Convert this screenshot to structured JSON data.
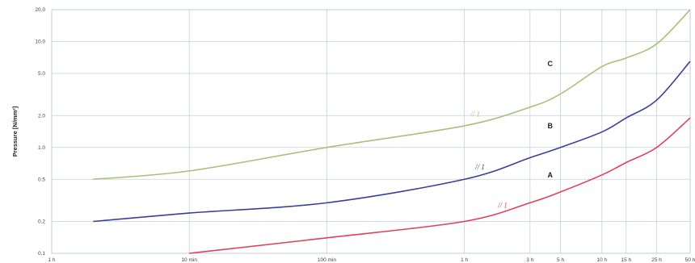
{
  "chart_data": {
    "type": "line",
    "title": "",
    "ylabel": "Pressure [N/mm²]",
    "xlabel": "",
    "y_scale": "log",
    "ylim": [
      0.1,
      20.0
    ],
    "y_ticks": [
      {
        "value": 0.1,
        "label": "0.1"
      },
      {
        "value": 0.2,
        "label": "0.2"
      },
      {
        "value": 0.5,
        "label": "0.5"
      },
      {
        "value": 1.0,
        "label": "1.0"
      },
      {
        "value": 2.0,
        "label": "2.0"
      },
      {
        "value": 5.0,
        "label": "5.0"
      },
      {
        "value": 10.0,
        "label": "10.0"
      },
      {
        "value": 20.0,
        "label": "20.0"
      }
    ],
    "x_scale": "log",
    "x_unit": "hours",
    "xlim": [
      1,
      43800
    ],
    "x_ticks": [
      {
        "value": 1,
        "label": "1 h"
      },
      {
        "value": 10,
        "label": "10 min"
      },
      {
        "value": 100,
        "label": "100 min"
      },
      {
        "value": 1000,
        "label": "1 h"
      },
      {
        "value": 3000,
        "label": "3 h"
      },
      {
        "value": 5000,
        "label": "5 h"
      },
      {
        "value": 10000,
        "label": "10 h"
      },
      {
        "value": 15000,
        "label": "15 h"
      },
      {
        "value": 25000,
        "label": "25 h"
      },
      {
        "value": 43800,
        "label": "50 h"
      }
    ],
    "grid": true,
    "series": [
      {
        "name": "A",
        "color": "#e0405a",
        "x": [
          10,
          100,
          1000,
          3000,
          5000,
          10000,
          15000,
          25000,
          43800
        ],
        "y": [
          0.1,
          0.14,
          0.2,
          0.3,
          0.38,
          0.55,
          0.72,
          1.0,
          1.9
        ]
      },
      {
        "name": "B",
        "color": "#3a3f9a",
        "x": [
          2,
          10,
          100,
          1000,
          3000,
          5000,
          10000,
          15000,
          25000,
          43800
        ],
        "y": [
          0.2,
          0.24,
          0.3,
          0.5,
          0.8,
          1.0,
          1.4,
          1.9,
          2.8,
          6.5
        ]
      },
      {
        "name": "C",
        "color": "#a8c07a",
        "x": [
          2,
          10,
          100,
          1000,
          3000,
          5000,
          10000,
          15000,
          25000,
          43800
        ],
        "y": [
          0.5,
          0.6,
          1.0,
          1.6,
          2.4,
          3.2,
          5.8,
          7.0,
          9.5,
          20.0
        ]
      }
    ],
    "series_labels": [
      {
        "series": "C",
        "text": "C",
        "x": 4200,
        "y": 6.2
      },
      {
        "series": "B",
        "text": "B",
        "x": 4200,
        "y": 1.6
      },
      {
        "series": "A",
        "text": "A",
        "x": 4200,
        "y": 0.55
      }
    ],
    "annotations": [
      {
        "series": "C",
        "text": "// 1",
        "x": 1200,
        "y": 1.95
      },
      {
        "series": "B",
        "text": "// 1",
        "x": 1300,
        "y": 0.62
      },
      {
        "series": "A",
        "text": "// 1",
        "x": 1900,
        "y": 0.27
      }
    ]
  }
}
